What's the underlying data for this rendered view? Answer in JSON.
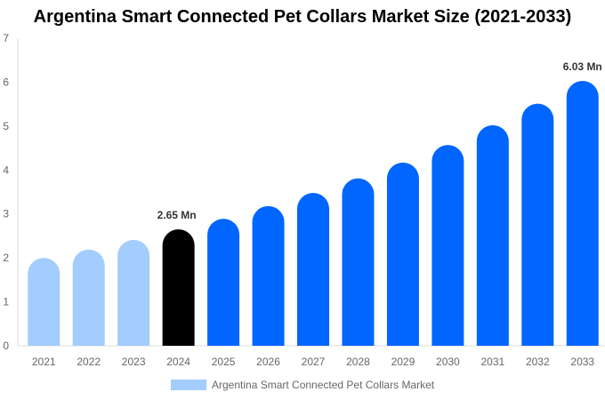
{
  "chart_data": {
    "type": "bar",
    "title": "Argentina Smart Connected Pet Collars Market Size (2021-2033)",
    "categories": [
      "2021",
      "2022",
      "2023",
      "2024",
      "2025",
      "2026",
      "2027",
      "2028",
      "2029",
      "2030",
      "2031",
      "2032",
      "2033"
    ],
    "series": [
      {
        "name": "Argentina Smart Connected Pet Collars Market",
        "values": [
          2.0,
          2.19,
          2.41,
          2.65,
          2.89,
          3.18,
          3.48,
          3.81,
          4.17,
          4.57,
          5.02,
          5.51,
          6.03
        ]
      }
    ],
    "data_labels": {
      "3": "2.65 Mn",
      "12": "6.03 Mn"
    },
    "ylim": [
      0,
      7
    ],
    "yticks": [
      "0",
      "1",
      "2",
      "3",
      "4",
      "5",
      "6",
      "7"
    ],
    "xlabel": "",
    "ylabel": "",
    "grid": false,
    "legend_position": "bottom",
    "colors": {
      "historic": "#a2cdfc",
      "base_year": "#000000",
      "forecast": "#0066ff"
    }
  }
}
